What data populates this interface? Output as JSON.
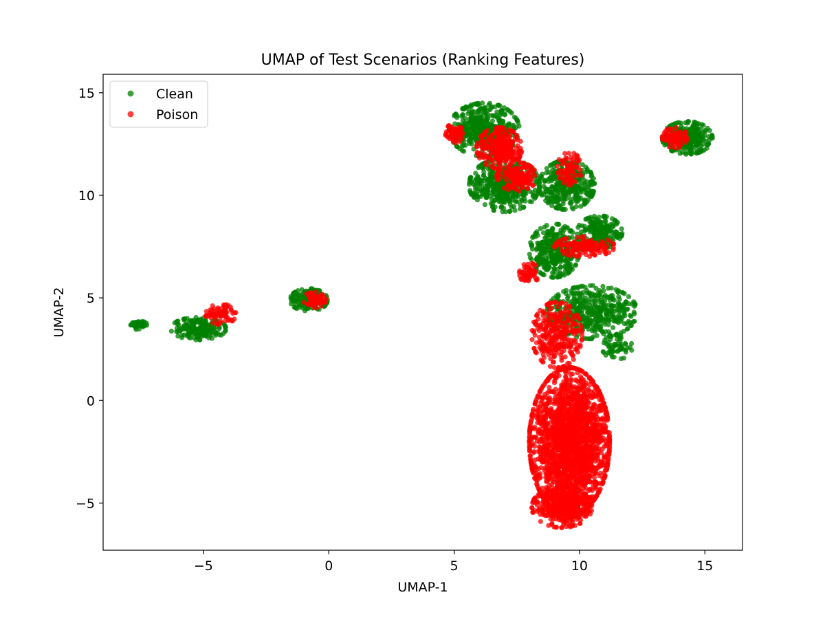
{
  "chart_data": {
    "type": "scatter",
    "title": "UMAP of Test Scenarios (Ranking Features)",
    "xlabel": "UMAP-1",
    "ylabel": "UMAP-2",
    "xlim": [
      -9.0,
      16.5
    ],
    "ylim": [
      -7.3,
      15.9
    ],
    "xticks": [
      -5,
      0,
      5,
      10,
      15
    ],
    "xtick_labels": [
      "−5",
      "0",
      "5",
      "10",
      "15"
    ],
    "yticks": [
      -5,
      0,
      5,
      10,
      15
    ],
    "ytick_labels": [
      "−5",
      "0",
      "5",
      "10",
      "15"
    ],
    "grid": false,
    "legend_position": "top-left",
    "series": [
      {
        "name": "Clean",
        "color": "#008000",
        "clusters": [
          {
            "cx": -7.6,
            "cy": 3.7,
            "rx": 0.35,
            "ry": 0.25,
            "n": 40
          },
          {
            "cx": -5.2,
            "cy": 3.5,
            "rx": 1.1,
            "ry": 0.55,
            "n": 200
          },
          {
            "cx": -0.8,
            "cy": 4.9,
            "rx": 0.75,
            "ry": 0.55,
            "n": 200
          },
          {
            "cx": 6.2,
            "cy": 13.2,
            "rx": 1.4,
            "ry": 1.3,
            "n": 500
          },
          {
            "cx": 7.0,
            "cy": 10.5,
            "rx": 1.4,
            "ry": 1.3,
            "n": 450
          },
          {
            "cx": 9.5,
            "cy": 10.5,
            "rx": 1.1,
            "ry": 1.2,
            "n": 350
          },
          {
            "cx": 9.0,
            "cy": 7.3,
            "rx": 1.0,
            "ry": 1.3,
            "n": 350
          },
          {
            "cx": 10.8,
            "cy": 8.2,
            "rx": 0.9,
            "ry": 0.8,
            "n": 200
          },
          {
            "cx": 10.5,
            "cy": 4.3,
            "rx": 1.8,
            "ry": 1.3,
            "n": 450
          },
          {
            "cx": 14.3,
            "cy": 12.8,
            "rx": 1.0,
            "ry": 0.8,
            "n": 300
          },
          {
            "cx": 11.5,
            "cy": 2.6,
            "rx": 0.6,
            "ry": 0.6,
            "n": 60
          }
        ]
      },
      {
        "name": "Poison",
        "color": "#ff0000",
        "clusters": [
          {
            "cx": -4.3,
            "cy": 4.2,
            "rx": 0.6,
            "ry": 0.5,
            "n": 80
          },
          {
            "cx": -0.6,
            "cy": 4.9,
            "rx": 0.5,
            "ry": 0.4,
            "n": 60
          },
          {
            "cx": 5.0,
            "cy": 13.0,
            "rx": 0.35,
            "ry": 0.5,
            "n": 60
          },
          {
            "cx": 6.8,
            "cy": 12.3,
            "rx": 0.9,
            "ry": 1.0,
            "n": 260
          },
          {
            "cx": 7.5,
            "cy": 10.9,
            "rx": 0.8,
            "ry": 0.7,
            "n": 150
          },
          {
            "cx": 9.6,
            "cy": 11.3,
            "rx": 0.5,
            "ry": 0.8,
            "n": 80
          },
          {
            "cx": 10.2,
            "cy": 7.5,
            "rx": 1.2,
            "ry": 0.5,
            "n": 140
          },
          {
            "cx": 8.0,
            "cy": 6.2,
            "rx": 0.4,
            "ry": 0.5,
            "n": 60
          },
          {
            "cx": 13.8,
            "cy": 12.8,
            "rx": 0.5,
            "ry": 0.5,
            "n": 100
          },
          {
            "cx": 9.1,
            "cy": 3.2,
            "rx": 1.0,
            "ry": 1.6,
            "n": 300
          },
          {
            "cx": 9.6,
            "cy": -2.0,
            "rx": 1.6,
            "ry": 3.6,
            "n": 2200
          },
          {
            "cx": 9.3,
            "cy": -5.2,
            "rx": 1.2,
            "ry": 1.0,
            "n": 400
          }
        ]
      }
    ]
  }
}
